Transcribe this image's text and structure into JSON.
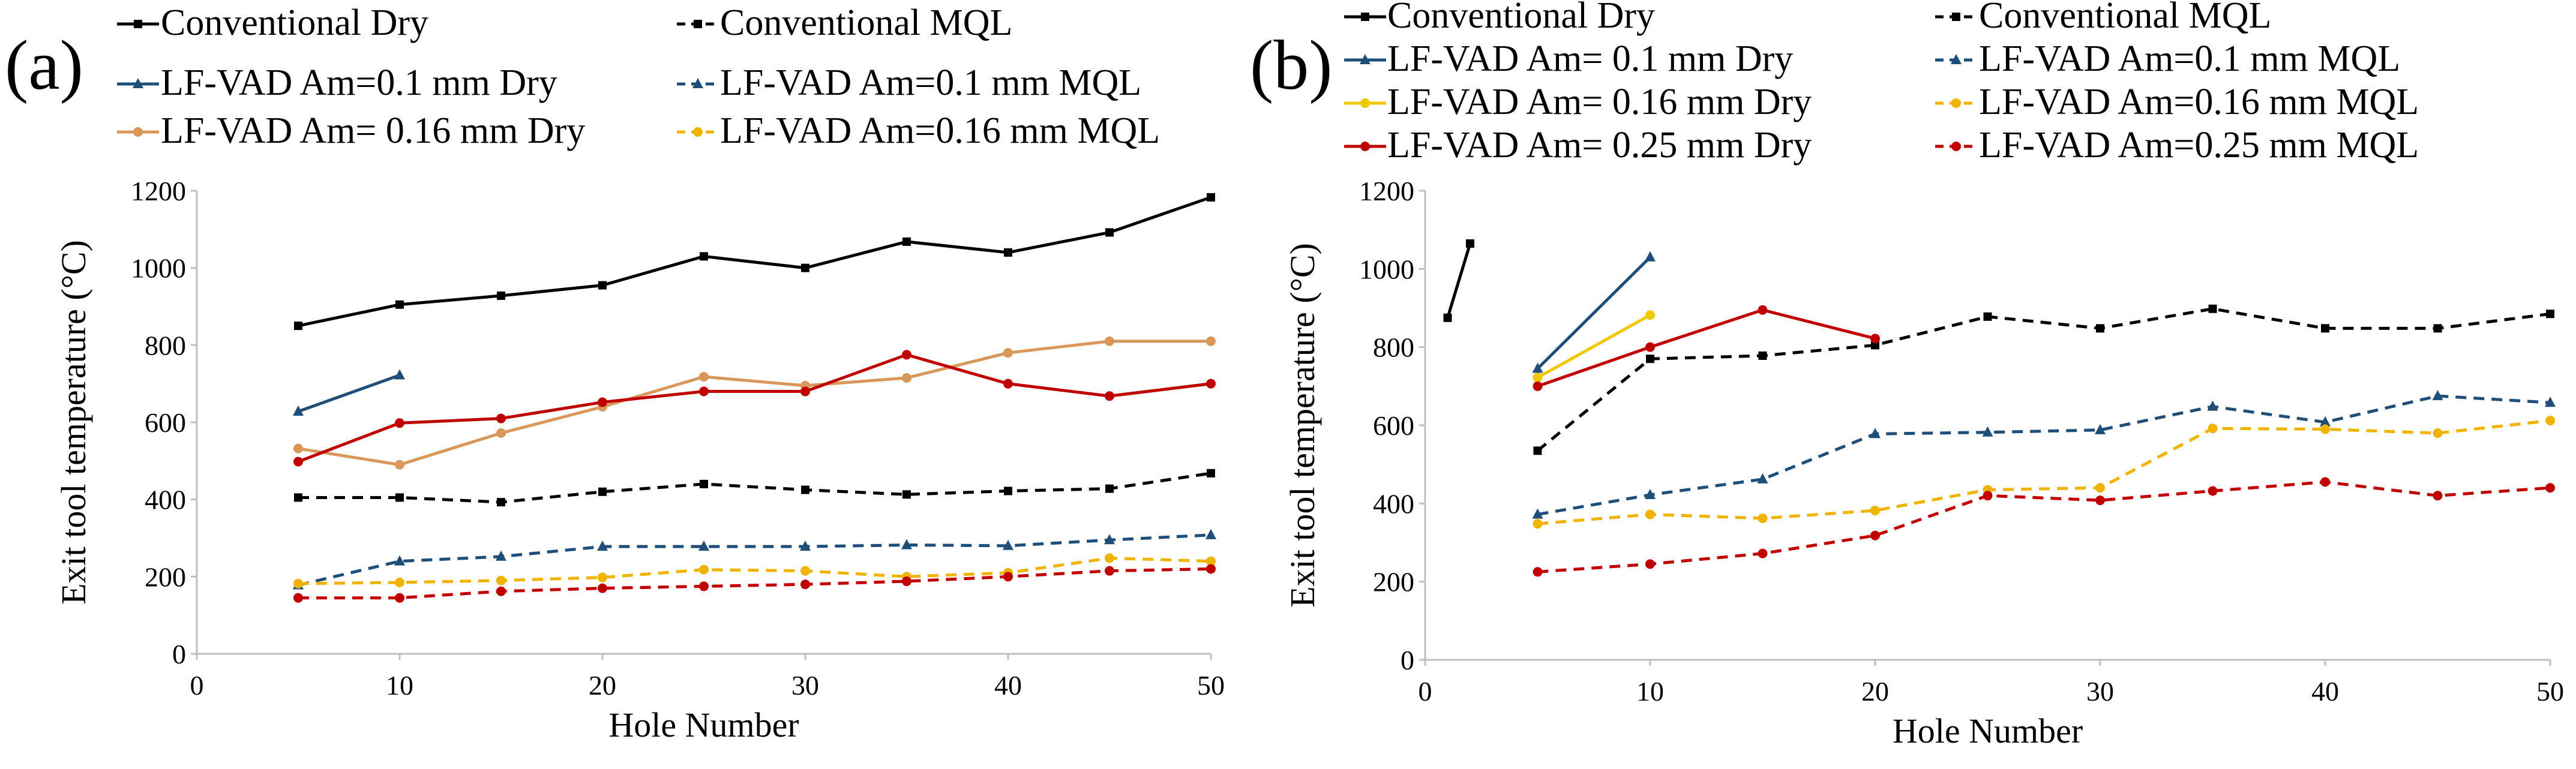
{
  "chart_data": [
    {
      "panel_label": "(a)",
      "type": "line",
      "xlabel": "Hole Number",
      "ylabel": "Exit tool temperature (°C)",
      "xlim": [
        0,
        50
      ],
      "ylim": [
        0,
        1200
      ],
      "xticks": [
        "0",
        "10",
        "20",
        "30",
        "40",
        "50"
      ],
      "yticks": [
        "0",
        "200",
        "400",
        "600",
        "800",
        "1000",
        "1200"
      ],
      "grid": false,
      "legend_position": "top",
      "series": [
        {
          "name": "Conventional Dry",
          "color": "#000000",
          "dash": "solid",
          "marker": "square",
          "x": [
            5,
            10,
            15,
            20,
            25,
            30,
            35,
            40,
            45,
            50
          ],
          "y": [
            850,
            905,
            928,
            955,
            1030,
            1000,
            1068,
            1040,
            1092,
            1183
          ]
        },
        {
          "name": "Conventional MQL",
          "color": "#000000",
          "dash": "dashed",
          "marker": "square",
          "x": [
            5,
            10,
            15,
            20,
            25,
            30,
            35,
            40,
            45,
            50
          ],
          "y": [
            405,
            405,
            393,
            420,
            440,
            425,
            413,
            422,
            428,
            468
          ]
        },
        {
          "name": "LF-VAD Am=0.1 mm Dry",
          "color": "#1f4e79",
          "dash": "solid",
          "marker": "triangle",
          "x": [
            5,
            10
          ],
          "y": [
            628,
            722
          ]
        },
        {
          "name": "LF-VAD Am=0.1 mm MQL",
          "color": "#1f4e79",
          "dash": "dashed",
          "marker": "triangle",
          "x": [
            5,
            10,
            15,
            20,
            25,
            30,
            35,
            40,
            45,
            50
          ],
          "y": [
            178,
            240,
            252,
            278,
            278,
            278,
            282,
            280,
            295,
            308
          ]
        },
        {
          "name": "LF-VAD Am= 0.16 mm Dry",
          "color": "#d9985a",
          "dash": "solid",
          "marker": "circle",
          "x": [
            5,
            10,
            15,
            20,
            25,
            30,
            35,
            40,
            45,
            50
          ],
          "y": [
            532,
            490,
            572,
            640,
            718,
            695,
            715,
            780,
            810,
            810
          ]
        },
        {
          "name": "LF-VAD Am=0.16 mm MQL",
          "color": "#f0b400",
          "dash": "dashed",
          "marker": "circle",
          "x": [
            5,
            10,
            15,
            20,
            25,
            30,
            35,
            40,
            45,
            50
          ],
          "y": [
            182,
            185,
            190,
            198,
            218,
            215,
            200,
            210,
            248,
            240
          ]
        },
        {
          "name": "LF-VAD Am= 0.25 mm Dry",
          "color": "#c00000",
          "dash": "solid",
          "marker": "circle",
          "in_legend": false,
          "x": [
            5,
            10,
            15,
            20,
            25,
            30,
            35,
            40,
            45,
            50
          ],
          "y": [
            498,
            598,
            610,
            652,
            680,
            680,
            775,
            700,
            668,
            700
          ]
        },
        {
          "name": "LF-VAD Am=0.25 mm MQL",
          "color": "#c00000",
          "dash": "dashed",
          "marker": "circle",
          "in_legend": false,
          "x": [
            5,
            10,
            15,
            20,
            25,
            30,
            35,
            40,
            45,
            50
          ],
          "y": [
            145,
            145,
            162,
            170,
            175,
            180,
            188,
            200,
            215,
            220
          ]
        }
      ]
    },
    {
      "panel_label": "(b)",
      "type": "line",
      "xlabel": "Hole Number",
      "ylabel": "Exit tool temperature (°C)",
      "xlim": [
        0,
        50
      ],
      "ylim": [
        0,
        1200
      ],
      "xticks": [
        "0",
        "10",
        "20",
        "30",
        "40",
        "50"
      ],
      "yticks": [
        "0",
        "200",
        "400",
        "600",
        "800",
        "1000",
        "1200"
      ],
      "grid": false,
      "legend_position": "top",
      "series": [
        {
          "name": "Conventional Dry",
          "color": "#000000",
          "dash": "solid",
          "marker": "square",
          "x": [
            1,
            2
          ],
          "y": [
            875,
            1065
          ]
        },
        {
          "name": "Conventional MQL",
          "color": "#000000",
          "dash": "dashed",
          "marker": "square",
          "x": [
            5,
            10,
            15,
            20,
            25,
            30,
            35,
            40,
            45,
            50
          ],
          "y": [
            535,
            770,
            778,
            805,
            878,
            848,
            898,
            848,
            848,
            885
          ]
        },
        {
          "name": "LF-VAD Am= 0.1 mm Dry",
          "color": "#1f4e79",
          "dash": "solid",
          "marker": "triangle",
          "x": [
            5,
            10
          ],
          "y": [
            745,
            1030
          ]
        },
        {
          "name": "LF-VAD Am=0.1 mm MQL",
          "color": "#1f4e79",
          "dash": "dashed",
          "marker": "triangle",
          "x": [
            5,
            10,
            15,
            20,
            25,
            30,
            35,
            40,
            45,
            50
          ],
          "y": [
            372,
            422,
            462,
            578,
            582,
            588,
            648,
            608,
            675,
            658
          ]
        },
        {
          "name": "LF-VAD Am= 0.16 mm Dry",
          "color": "#f0c800",
          "dash": "solid",
          "marker": "circle",
          "x": [
            5,
            10
          ],
          "y": [
            722,
            882
          ]
        },
        {
          "name": "LF-VAD Am=0.16 mm MQL",
          "color": "#f0b400",
          "dash": "dashed",
          "marker": "circle",
          "x": [
            5,
            10,
            15,
            20,
            25,
            30,
            35,
            40,
            45,
            50
          ],
          "y": [
            348,
            372,
            362,
            382,
            435,
            440,
            592,
            590,
            580,
            612
          ]
        },
        {
          "name": "LF-VAD Am= 0.25 mm Dry",
          "color": "#c00000",
          "dash": "solid",
          "marker": "circle",
          "x": [
            5,
            10,
            15,
            20
          ],
          "y": [
            700,
            800,
            895,
            822
          ]
        },
        {
          "name": "LF-VAD Am=0.25 mm MQL",
          "color": "#c00000",
          "dash": "dashed",
          "marker": "circle",
          "x": [
            5,
            10,
            15,
            20,
            25,
            30,
            35,
            40,
            45,
            50
          ],
          "y": [
            225,
            245,
            272,
            318,
            420,
            408,
            432,
            455,
            420,
            440
          ]
        }
      ]
    }
  ]
}
